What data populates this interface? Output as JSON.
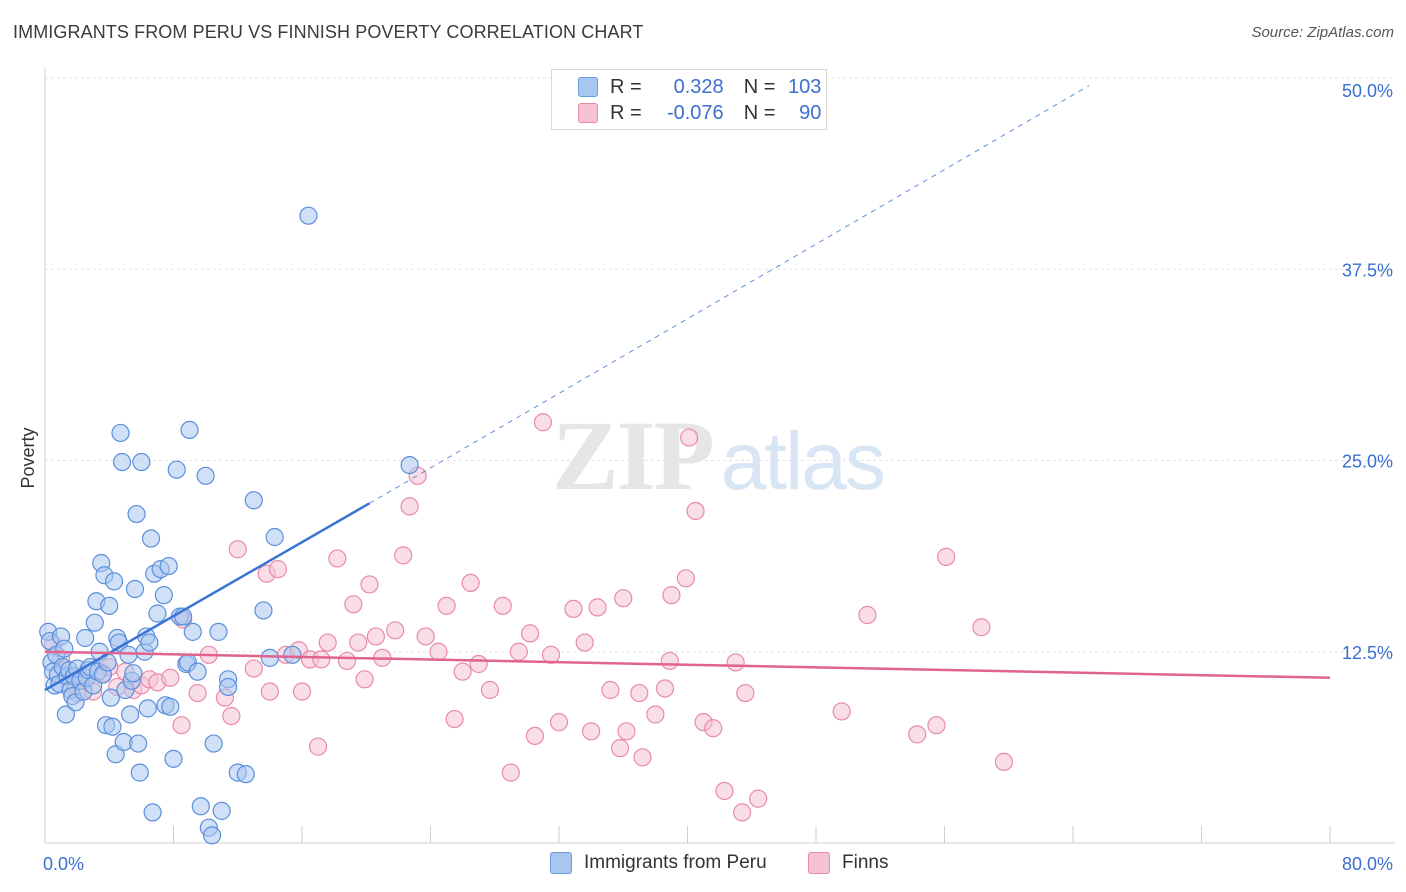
{
  "title": "IMMIGRANTS FROM PERU VS FINNISH POVERTY CORRELATION CHART",
  "source": "Source: ZipAtlas.com",
  "watermark": {
    "zip": "ZIP",
    "atlas": "atlas"
  },
  "legend": {
    "rows": [
      {
        "r_label": "R =",
        "r_value": "0.328",
        "n_label": "N =",
        "n_value": "103"
      },
      {
        "r_label": "R =",
        "r_value": "-0.076",
        "n_label": "N =",
        "n_value": "90"
      }
    ]
  },
  "bottom_legend": [
    "Immigrants from Peru",
    "Finns"
  ],
  "colors": {
    "blue": "#3a74d4",
    "blue_fill": "#a9c6ef",
    "pink": "#e0628f",
    "pink_fill": "#f6c3d3",
    "axis_text": "#3a6fd1"
  },
  "chart_data": {
    "type": "scatter",
    "ylabel": "Poverty",
    "xlim": [
      0,
      80
    ],
    "ylim": [
      0,
      50
    ],
    "x_tick_labels": [
      "0.0%",
      "80.0%"
    ],
    "y_ticks": [
      12.5,
      25.0,
      37.5,
      50.0
    ],
    "y_tick_labels": [
      "12.5%",
      "25.0%",
      "37.5%",
      "50.0%"
    ],
    "grid": true,
    "legend_position": "top-center",
    "series": [
      {
        "name": "Immigrants from Peru",
        "color": "#3a74d4",
        "trendline": {
          "x0": 0,
          "y0": 10.0,
          "x1": 20.2,
          "y1": 22.2,
          "dashed_to_x": 65,
          "dashed_to_y": 49.5
        },
        "points": [
          [
            0.2,
            13.8
          ],
          [
            0.3,
            13.2
          ],
          [
            0.4,
            11.8
          ],
          [
            0.5,
            11.2
          ],
          [
            0.6,
            10.3
          ],
          [
            0.7,
            12.3
          ],
          [
            0.8,
            11.0
          ],
          [
            0.9,
            10.4
          ],
          [
            1.0,
            13.5
          ],
          [
            1.1,
            11.5
          ],
          [
            1.2,
            12.7
          ],
          [
            1.3,
            8.4
          ],
          [
            1.4,
            10.9
          ],
          [
            1.5,
            11.3
          ],
          [
            1.6,
            10.0
          ],
          [
            1.7,
            9.6
          ],
          [
            1.8,
            10.9
          ],
          [
            1.9,
            9.2
          ],
          [
            2.0,
            11.4
          ],
          [
            2.2,
            10.6
          ],
          [
            2.4,
            9.9
          ],
          [
            2.5,
            13.4
          ],
          [
            2.6,
            10.8
          ],
          [
            2.7,
            11.3
          ],
          [
            2.8,
            11.5
          ],
          [
            3.0,
            10.3
          ],
          [
            3.1,
            14.4
          ],
          [
            3.2,
            15.8
          ],
          [
            3.3,
            11.2
          ],
          [
            3.4,
            12.5
          ],
          [
            3.5,
            18.3
          ],
          [
            3.6,
            11.0
          ],
          [
            3.7,
            17.5
          ],
          [
            3.8,
            7.7
          ],
          [
            3.9,
            11.8
          ],
          [
            4.0,
            15.5
          ],
          [
            4.1,
            9.5
          ],
          [
            4.2,
            7.6
          ],
          [
            4.3,
            17.1
          ],
          [
            4.4,
            5.8
          ],
          [
            4.5,
            13.4
          ],
          [
            4.6,
            13.1
          ],
          [
            4.7,
            26.8
          ],
          [
            4.8,
            24.9
          ],
          [
            4.9,
            6.6
          ],
          [
            5.0,
            10.0
          ],
          [
            5.2,
            12.3
          ],
          [
            5.3,
            8.4
          ],
          [
            5.4,
            10.6
          ],
          [
            5.5,
            11.1
          ],
          [
            5.6,
            16.6
          ],
          [
            5.7,
            21.5
          ],
          [
            5.8,
            6.5
          ],
          [
            5.9,
            4.6
          ],
          [
            6.0,
            24.9
          ],
          [
            6.2,
            12.5
          ],
          [
            6.3,
            13.5
          ],
          [
            6.4,
            8.8
          ],
          [
            6.5,
            13.1
          ],
          [
            6.6,
            19.9
          ],
          [
            6.7,
            2.0
          ],
          [
            6.8,
            17.6
          ],
          [
            7.0,
            15.0
          ],
          [
            7.2,
            17.9
          ],
          [
            7.4,
            16.2
          ],
          [
            7.5,
            9.0
          ],
          [
            7.7,
            18.1
          ],
          [
            7.8,
            8.9
          ],
          [
            8.0,
            5.5
          ],
          [
            8.2,
            24.4
          ],
          [
            8.4,
            14.8
          ],
          [
            8.6,
            14.8
          ],
          [
            8.8,
            11.7
          ],
          [
            8.9,
            11.8
          ],
          [
            9.0,
            27.0
          ],
          [
            9.2,
            13.8
          ],
          [
            9.5,
            11.2
          ],
          [
            9.7,
            2.4
          ],
          [
            10.0,
            24.0
          ],
          [
            10.2,
            1.0
          ],
          [
            10.4,
            0.5
          ],
          [
            10.5,
            6.5
          ],
          [
            10.8,
            13.8
          ],
          [
            11.0,
            2.1
          ],
          [
            11.4,
            10.7
          ],
          [
            11.4,
            10.2
          ],
          [
            12.0,
            4.6
          ],
          [
            12.5,
            4.5
          ],
          [
            13.0,
            22.4
          ],
          [
            13.6,
            15.2
          ],
          [
            14.0,
            12.1
          ],
          [
            14.3,
            20.0
          ],
          [
            15.4,
            12.3
          ],
          [
            22.7,
            24.7
          ],
          [
            16.4,
            41.0
          ]
        ]
      },
      {
        "name": "Finns",
        "color": "#e0628f",
        "trendline": {
          "x0": 0,
          "y0": 12.5,
          "x1": 80,
          "y1": 10.8
        },
        "points": [
          [
            0.5,
            13.0
          ],
          [
            1.0,
            12.0
          ],
          [
            1.5,
            10.4
          ],
          [
            2.0,
            9.8
          ],
          [
            2.4,
            10.6
          ],
          [
            3.0,
            9.9
          ],
          [
            3.6,
            11.1
          ],
          [
            4.0,
            11.5
          ],
          [
            4.5,
            10.2
          ],
          [
            5.0,
            11.2
          ],
          [
            5.5,
            10.0
          ],
          [
            6.0,
            10.3
          ],
          [
            6.5,
            10.7
          ],
          [
            7.0,
            10.5
          ],
          [
            7.8,
            10.8
          ],
          [
            8.5,
            7.7
          ],
          [
            8.6,
            14.6
          ],
          [
            9.5,
            9.8
          ],
          [
            10.2,
            12.3
          ],
          [
            11.2,
            9.5
          ],
          [
            11.6,
            8.3
          ],
          [
            12.0,
            19.2
          ],
          [
            13.0,
            11.4
          ],
          [
            13.8,
            17.6
          ],
          [
            14.0,
            9.9
          ],
          [
            14.5,
            17.9
          ],
          [
            15.0,
            12.3
          ],
          [
            15.8,
            12.6
          ],
          [
            16.0,
            9.9
          ],
          [
            16.5,
            12.0
          ],
          [
            17.0,
            6.3
          ],
          [
            17.2,
            12.0
          ],
          [
            17.6,
            13.1
          ],
          [
            18.2,
            18.6
          ],
          [
            18.8,
            11.9
          ],
          [
            19.2,
            15.6
          ],
          [
            19.5,
            13.1
          ],
          [
            19.9,
            10.7
          ],
          [
            20.2,
            16.9
          ],
          [
            20.6,
            13.5
          ],
          [
            21.0,
            12.1
          ],
          [
            21.8,
            13.9
          ],
          [
            22.3,
            18.8
          ],
          [
            22.7,
            22.0
          ],
          [
            23.2,
            24.0
          ],
          [
            23.7,
            13.5
          ],
          [
            24.5,
            12.5
          ],
          [
            25.0,
            15.5
          ],
          [
            25.5,
            8.1
          ],
          [
            26.0,
            11.2
          ],
          [
            26.5,
            17.0
          ],
          [
            27.0,
            11.7
          ],
          [
            27.7,
            10.0
          ],
          [
            28.5,
            15.5
          ],
          [
            29.0,
            4.6
          ],
          [
            29.5,
            12.5
          ],
          [
            30.2,
            13.7
          ],
          [
            30.5,
            7.0
          ],
          [
            31.0,
            27.5
          ],
          [
            31.5,
            12.3
          ],
          [
            32.0,
            7.9
          ],
          [
            32.9,
            15.3
          ],
          [
            33.6,
            13.1
          ],
          [
            34.0,
            7.3
          ],
          [
            34.4,
            15.4
          ],
          [
            35.2,
            10.0
          ],
          [
            35.8,
            6.2
          ],
          [
            36.0,
            16.0
          ],
          [
            36.2,
            7.3
          ],
          [
            37.0,
            9.8
          ],
          [
            37.2,
            5.6
          ],
          [
            38.0,
            8.4
          ],
          [
            38.6,
            10.1
          ],
          [
            38.9,
            11.9
          ],
          [
            39.0,
            16.2
          ],
          [
            39.9,
            17.3
          ],
          [
            40.1,
            26.5
          ],
          [
            40.5,
            21.7
          ],
          [
            41.0,
            7.9
          ],
          [
            41.6,
            7.5
          ],
          [
            42.3,
            3.4
          ],
          [
            43.0,
            11.8
          ],
          [
            43.4,
            2.0
          ],
          [
            43.6,
            9.8
          ],
          [
            44.4,
            2.9
          ],
          [
            49.6,
            8.6
          ],
          [
            51.2,
            14.9
          ],
          [
            54.3,
            7.1
          ],
          [
            55.5,
            7.7
          ],
          [
            56.1,
            18.7
          ],
          [
            58.3,
            14.1
          ],
          [
            59.7,
            5.3
          ]
        ]
      }
    ]
  }
}
